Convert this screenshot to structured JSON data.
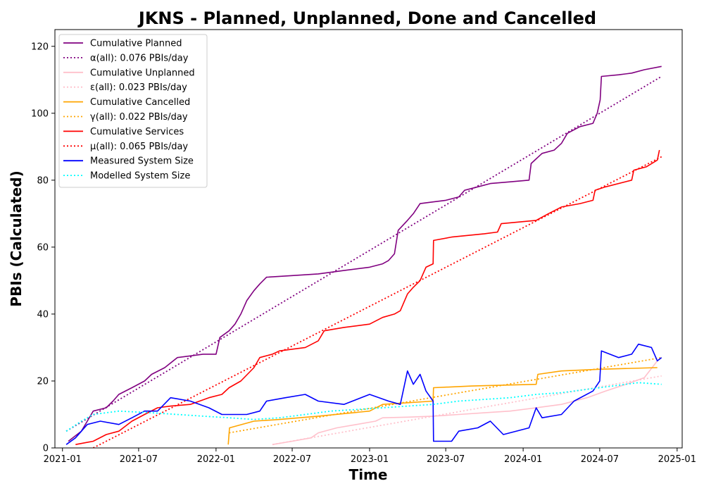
{
  "chart_data": {
    "type": "line",
    "title": "JKNS - Planned, Unplanned, Done  and Cancelled",
    "xlabel": "Time",
    "ylabel": "PBIs (Calculated)",
    "xlim": [
      "2020-12-14",
      "2025-01-13"
    ],
    "ylim": [
      0,
      125
    ],
    "x_ticks": [
      "2021-01",
      "2021-07",
      "2022-01",
      "2022-07",
      "2023-01",
      "2023-07",
      "2024-01",
      "2024-07",
      "2025-01"
    ],
    "y_ticks": [
      0,
      20,
      40,
      60,
      80,
      100,
      120
    ],
    "grid": false,
    "legend_position": "top-left",
    "series": [
      {
        "name": "Cumulative Planned",
        "color": "#800080",
        "style": "solid",
        "points": [
          [
            "2021-01-15",
            2
          ],
          [
            "2021-02-15",
            5
          ],
          [
            "2021-03-01",
            8
          ],
          [
            "2021-03-15",
            11
          ],
          [
            "2021-04-15",
            12
          ],
          [
            "2021-05-01",
            14
          ],
          [
            "2021-05-15",
            16
          ],
          [
            "2021-06-15",
            18
          ],
          [
            "2021-07-15",
            20
          ],
          [
            "2021-08-01",
            22
          ],
          [
            "2021-09-01",
            24
          ],
          [
            "2021-10-01",
            27
          ],
          [
            "2021-11-01",
            27.5
          ],
          [
            "2021-12-01",
            28
          ],
          [
            "2022-01-01",
            28
          ],
          [
            "2022-01-10",
            33
          ],
          [
            "2022-02-01",
            35
          ],
          [
            "2022-02-15",
            37
          ],
          [
            "2022-03-01",
            40
          ],
          [
            "2022-03-15",
            44
          ],
          [
            "2022-04-01",
            47
          ],
          [
            "2022-04-15",
            49
          ],
          [
            "2022-05-01",
            51
          ],
          [
            "2022-07-01",
            51.5
          ],
          [
            "2022-09-01",
            52
          ],
          [
            "2022-11-01",
            53
          ],
          [
            "2023-01-01",
            54
          ],
          [
            "2023-02-01",
            55
          ],
          [
            "2023-02-15",
            56
          ],
          [
            "2023-03-01",
            58
          ],
          [
            "2023-03-10",
            65
          ],
          [
            "2023-04-01",
            68
          ],
          [
            "2023-04-15",
            70
          ],
          [
            "2023-05-01",
            73
          ],
          [
            "2023-06-01",
            73.5
          ],
          [
            "2023-07-01",
            74
          ],
          [
            "2023-08-01",
            75
          ],
          [
            "2023-08-15",
            77
          ],
          [
            "2023-09-15",
            78
          ],
          [
            "2023-10-15",
            79
          ],
          [
            "2023-12-01",
            79.5
          ],
          [
            "2024-01-15",
            80
          ],
          [
            "2024-01-20",
            85
          ],
          [
            "2024-02-15",
            88
          ],
          [
            "2024-03-15",
            89
          ],
          [
            "2024-04-01",
            91
          ],
          [
            "2024-04-15",
            94
          ],
          [
            "2024-05-15",
            96
          ],
          [
            "2024-06-15",
            97
          ],
          [
            "2024-06-25",
            100
          ],
          [
            "2024-07-02",
            104
          ],
          [
            "2024-07-05",
            111
          ],
          [
            "2024-08-15",
            111.5
          ],
          [
            "2024-09-15",
            112
          ],
          [
            "2024-10-15",
            113
          ],
          [
            "2024-11-25",
            114
          ]
        ]
      },
      {
        "name": "α(all): 0.076 PBIs/day",
        "color": "#800080",
        "style": "dotted",
        "points": [
          [
            "2021-01-10",
            5
          ],
          [
            "2024-11-25",
            111
          ]
        ]
      },
      {
        "name": "Cumulative Unplanned",
        "color": "#ffc0cb",
        "style": "solid",
        "points": [
          [
            "2022-05-15",
            1
          ],
          [
            "2022-07-01",
            2
          ],
          [
            "2022-08-15",
            3
          ],
          [
            "2022-09-01",
            4.5
          ],
          [
            "2022-10-15",
            6
          ],
          [
            "2022-12-01",
            7
          ],
          [
            "2023-01-15",
            8
          ],
          [
            "2023-02-01",
            9
          ],
          [
            "2023-04-01",
            9.2
          ],
          [
            "2023-06-01",
            9.5
          ],
          [
            "2023-08-01",
            10
          ],
          [
            "2023-10-01",
            10.5
          ],
          [
            "2023-12-01",
            11
          ],
          [
            "2024-02-01",
            12
          ],
          [
            "2024-04-01",
            13
          ],
          [
            "2024-06-01",
            15
          ],
          [
            "2024-07-15",
            17
          ],
          [
            "2024-09-01",
            19
          ],
          [
            "2024-10-15",
            21
          ],
          [
            "2024-11-15",
            26
          ]
        ]
      },
      {
        "name": "ε(all): 0.023 PBIs/day",
        "color": "#ffc0cb",
        "style": "dotted",
        "points": [
          [
            "2022-05-15",
            1
          ],
          [
            "2024-11-25",
            21.5
          ]
        ]
      },
      {
        "name": "Cumulative Cancelled",
        "color": "#ffa500",
        "style": "solid",
        "points": [
          [
            "2022-01-30",
            1
          ],
          [
            "2022-02-02",
            6
          ],
          [
            "2022-04-01",
            8
          ],
          [
            "2022-06-01",
            8.5
          ],
          [
            "2022-09-01",
            9.5
          ],
          [
            "2023-01-01",
            11
          ],
          [
            "2023-02-01",
            13
          ],
          [
            "2023-06-01",
            14
          ],
          [
            "2023-06-02",
            18
          ],
          [
            "2023-09-01",
            18.5
          ],
          [
            "2024-02-01",
            19
          ],
          [
            "2024-02-05",
            22
          ],
          [
            "2024-04-01",
            23
          ],
          [
            "2024-07-01",
            23.5
          ],
          [
            "2024-11-15",
            24
          ]
        ]
      },
      {
        "name": "γ(all): 0.022 PBIs/day",
        "color": "#ffa500",
        "style": "dotted",
        "points": [
          [
            "2022-02-01",
            4.5
          ],
          [
            "2024-11-25",
            27
          ]
        ]
      },
      {
        "name": "Cumulative Services",
        "color": "#ff0000",
        "style": "solid",
        "points": [
          [
            "2021-02-01",
            1
          ],
          [
            "2021-03-15",
            2
          ],
          [
            "2021-04-15",
            4
          ],
          [
            "2021-05-15",
            5
          ],
          [
            "2021-06-15",
            8
          ],
          [
            "2021-07-15",
            10
          ],
          [
            "2021-08-15",
            12
          ],
          [
            "2021-09-15",
            12.5
          ],
          [
            "2021-11-01",
            13
          ],
          [
            "2021-12-15",
            15
          ],
          [
            "2022-01-15",
            16
          ],
          [
            "2022-02-01",
            18
          ],
          [
            "2022-03-01",
            20
          ],
          [
            "2022-04-01",
            24
          ],
          [
            "2022-04-15",
            27
          ],
          [
            "2022-05-15",
            28
          ],
          [
            "2022-06-01",
            29
          ],
          [
            "2022-08-01",
            30
          ],
          [
            "2022-09-01",
            32
          ],
          [
            "2022-09-15",
            35
          ],
          [
            "2022-11-01",
            36
          ],
          [
            "2023-01-01",
            37
          ],
          [
            "2023-02-01",
            39
          ],
          [
            "2023-03-01",
            40
          ],
          [
            "2023-03-15",
            41
          ],
          [
            "2023-04-01",
            46
          ],
          [
            "2023-04-15",
            48
          ],
          [
            "2023-05-01",
            50
          ],
          [
            "2023-05-15",
            54
          ],
          [
            "2023-06-01",
            55
          ],
          [
            "2023-06-02",
            62
          ],
          [
            "2023-07-15",
            63
          ],
          [
            "2023-10-01",
            64
          ],
          [
            "2023-11-01",
            64.5
          ],
          [
            "2023-11-10",
            67
          ],
          [
            "2024-02-01",
            68
          ],
          [
            "2024-03-01",
            70
          ],
          [
            "2024-04-01",
            72
          ],
          [
            "2024-05-15",
            73
          ],
          [
            "2024-06-15",
            74
          ],
          [
            "2024-06-20",
            77
          ],
          [
            "2024-07-15",
            78
          ],
          [
            "2024-09-15",
            80
          ],
          [
            "2024-09-20",
            83
          ],
          [
            "2024-10-20",
            84
          ],
          [
            "2024-11-15",
            86
          ],
          [
            "2024-11-20",
            89
          ]
        ]
      },
      {
        "name": "μ(all): 0.065 PBIs/day",
        "color": "#ff0000",
        "style": "dotted",
        "points": [
          [
            "2021-03-15",
            0
          ],
          [
            "2024-11-25",
            87
          ]
        ]
      },
      {
        "name": "Measured System Size",
        "color": "#0000ff",
        "style": "solid",
        "points": [
          [
            "2021-01-10",
            1
          ],
          [
            "2021-02-01",
            3
          ],
          [
            "2021-03-01",
            7
          ],
          [
            "2021-04-01",
            8
          ],
          [
            "2021-05-15",
            7
          ],
          [
            "2021-06-15",
            9
          ],
          [
            "2021-07-15",
            11
          ],
          [
            "2021-08-15",
            11
          ],
          [
            "2021-09-15",
            15
          ],
          [
            "2021-11-01",
            14
          ],
          [
            "2021-12-15",
            12
          ],
          [
            "2022-01-15",
            10
          ],
          [
            "2022-02-15",
            10
          ],
          [
            "2022-03-15",
            10
          ],
          [
            "2022-04-15",
            11
          ],
          [
            "2022-05-01",
            14
          ],
          [
            "2022-06-15",
            15
          ],
          [
            "2022-08-01",
            16
          ],
          [
            "2022-09-01",
            14
          ],
          [
            "2022-11-01",
            13
          ],
          [
            "2023-01-01",
            16
          ],
          [
            "2023-02-15",
            14
          ],
          [
            "2023-03-15",
            13
          ],
          [
            "2023-04-01",
            23
          ],
          [
            "2023-04-15",
            19
          ],
          [
            "2023-05-01",
            22
          ],
          [
            "2023-05-15",
            17
          ],
          [
            "2023-06-01",
            14
          ],
          [
            "2023-06-02",
            2
          ],
          [
            "2023-07-15",
            2
          ],
          [
            "2023-08-01",
            5
          ],
          [
            "2023-09-15",
            6
          ],
          [
            "2023-10-15",
            8
          ],
          [
            "2023-11-15",
            4
          ],
          [
            "2024-01-15",
            6
          ],
          [
            "2024-02-01",
            12
          ],
          [
            "2024-02-15",
            9
          ],
          [
            "2024-04-01",
            10
          ],
          [
            "2024-05-01",
            14
          ],
          [
            "2024-06-15",
            17
          ],
          [
            "2024-07-01",
            20
          ],
          [
            "2024-07-05",
            29
          ],
          [
            "2024-08-15",
            27
          ],
          [
            "2024-09-15",
            28
          ],
          [
            "2024-10-01",
            31
          ],
          [
            "2024-11-01",
            30
          ],
          [
            "2024-11-15",
            26
          ],
          [
            "2024-11-25",
            27
          ]
        ]
      },
      {
        "name": "Modelled System Size",
        "color": "#00ffff",
        "style": "dotted",
        "points": [
          [
            "2021-01-10",
            5
          ],
          [
            "2021-02-15",
            8
          ],
          [
            "2021-03-15",
            10
          ],
          [
            "2021-05-15",
            11
          ],
          [
            "2021-08-01",
            10.5
          ],
          [
            "2021-10-01",
            10
          ],
          [
            "2021-12-01",
            9.5
          ],
          [
            "2022-02-01",
            9
          ],
          [
            "2022-04-01",
            8.5
          ],
          [
            "2022-06-01",
            9
          ],
          [
            "2022-08-01",
            10
          ],
          [
            "2022-10-01",
            11
          ],
          [
            "2022-12-01",
            11.5
          ],
          [
            "2023-02-01",
            12
          ],
          [
            "2023-04-01",
            12.5
          ],
          [
            "2023-06-01",
            13
          ],
          [
            "2023-08-01",
            14
          ],
          [
            "2023-10-01",
            14.5
          ],
          [
            "2023-12-01",
            15
          ],
          [
            "2024-02-01",
            16
          ],
          [
            "2024-04-01",
            16.5
          ],
          [
            "2024-06-01",
            17.5
          ],
          [
            "2024-08-01",
            18.5
          ],
          [
            "2024-10-01",
            19.5
          ],
          [
            "2024-11-25",
            19
          ]
        ]
      }
    ]
  }
}
